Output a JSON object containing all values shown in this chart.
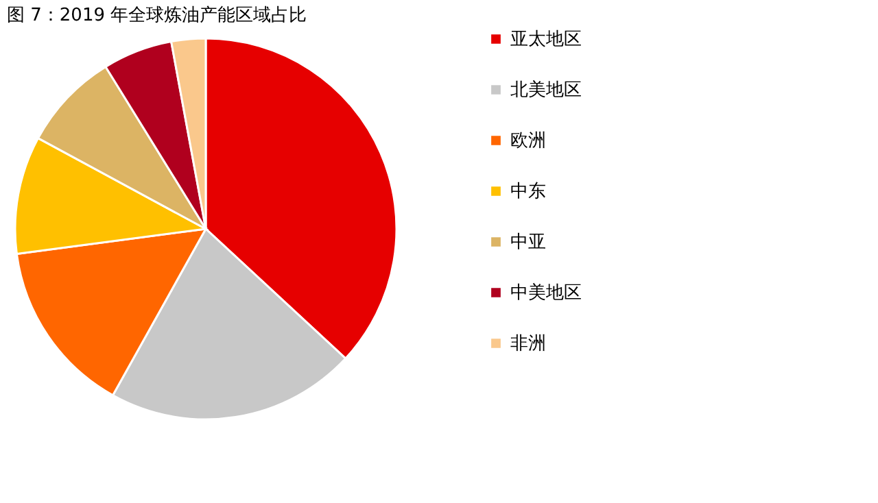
{
  "chart_data": {
    "type": "pie",
    "title": "图 7：2019 年全球炼油产能区域占比",
    "categories": [
      "亚太地区",
      "北美地区",
      "欧洲",
      "中东",
      "中亚",
      "中美地区",
      "非洲"
    ],
    "values": [
      36.9,
      21.2,
      14.8,
      10.0,
      8.3,
      5.9,
      2.9
    ],
    "colors": [
      "#e60000",
      "#c8c8c8",
      "#ff6600",
      "#ffc000",
      "#dcb464",
      "#b0001e",
      "#fac88c"
    ],
    "legend": "right"
  }
}
